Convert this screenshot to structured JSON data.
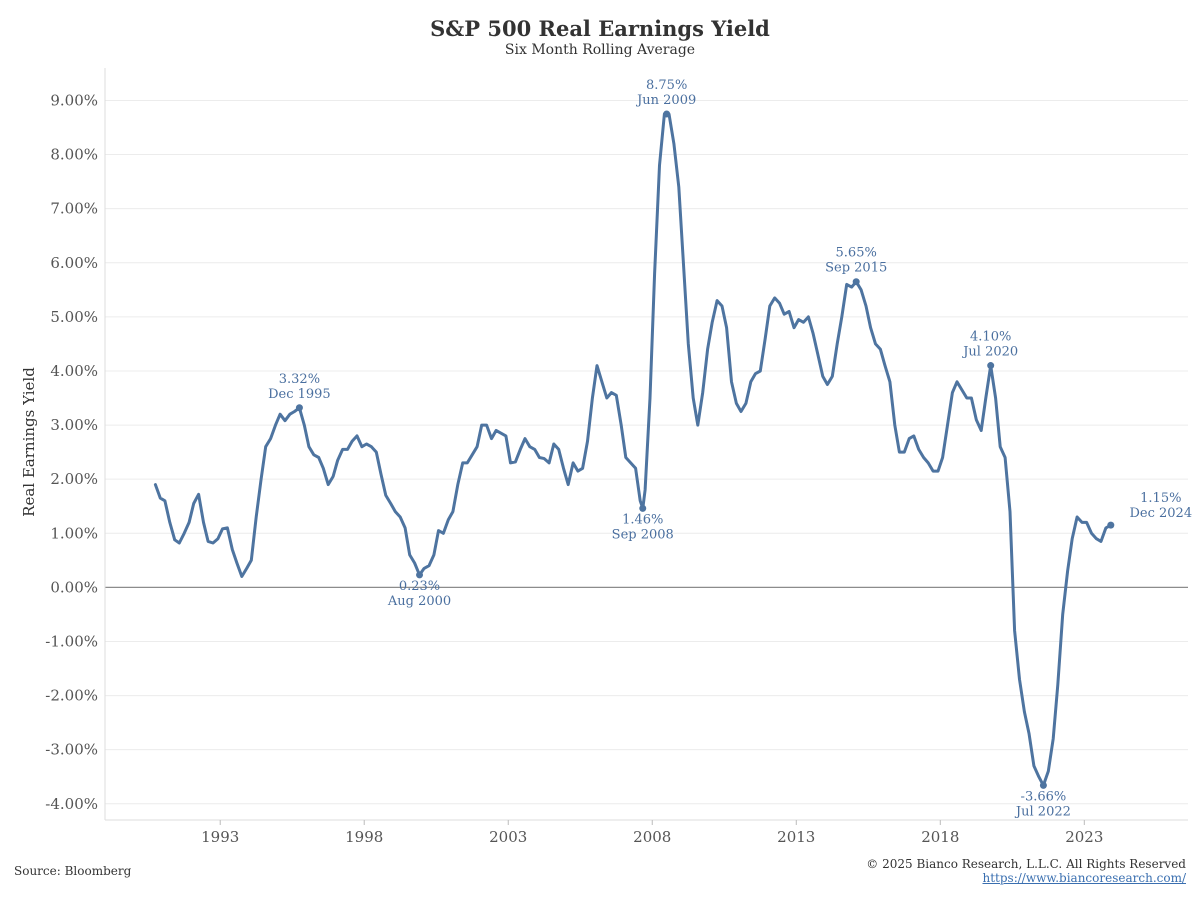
{
  "chart_data": {
    "type": "line",
    "title": "S&P 500 Real Earnings Yield",
    "subtitle": "Six Month Rolling Average",
    "ylabel": "Real Earnings Yield",
    "xlabel": "",
    "ylim": [
      -4.3,
      9.6
    ],
    "xlim": [
      1989.0,
      2026.6
    ],
    "y_ticks": [
      9,
      8,
      7,
      6,
      5,
      4,
      3,
      2,
      1,
      0,
      -1,
      -2,
      -3,
      -4
    ],
    "y_tick_labels": [
      "9.00%",
      "8.00%",
      "7.00%",
      "6.00%",
      "5.00%",
      "4.00%",
      "3.00%",
      "2.00%",
      "1.00%",
      "0.00%",
      "-1.00%",
      "-2.00%",
      "-3.00%",
      "-4.00%"
    ],
    "x_ticks": [
      1993,
      1998,
      2003,
      2008,
      2013,
      2018,
      2023
    ],
    "x_tick_labels": [
      "1993",
      "1998",
      "2003",
      "2008",
      "2013",
      "2018",
      "2023"
    ],
    "grid": "horizontal",
    "line_color": "#4e74a0",
    "zero_line_color": "#8c8c8c",
    "annotation_color": "#4a6f9f",
    "series": [
      {
        "points": [
          [
            1990.75,
            1.9
          ],
          [
            1990.92,
            1.65
          ],
          [
            1991.08,
            1.6
          ],
          [
            1991.25,
            1.2
          ],
          [
            1991.42,
            0.88
          ],
          [
            1991.58,
            0.82
          ],
          [
            1991.75,
            1.0
          ],
          [
            1991.92,
            1.2
          ],
          [
            1992.08,
            1.55
          ],
          [
            1992.25,
            1.72
          ],
          [
            1992.42,
            1.2
          ],
          [
            1992.58,
            0.85
          ],
          [
            1992.75,
            0.82
          ],
          [
            1992.92,
            0.9
          ],
          [
            1993.08,
            1.08
          ],
          [
            1993.25,
            1.1
          ],
          [
            1993.42,
            0.7
          ],
          [
            1993.58,
            0.45
          ],
          [
            1993.75,
            0.2
          ],
          [
            1993.92,
            0.35
          ],
          [
            1994.08,
            0.5
          ],
          [
            1994.25,
            1.3
          ],
          [
            1994.42,
            2.0
          ],
          [
            1994.58,
            2.6
          ],
          [
            1994.75,
            2.75
          ],
          [
            1994.92,
            3.0
          ],
          [
            1995.08,
            3.2
          ],
          [
            1995.25,
            3.08
          ],
          [
            1995.42,
            3.2
          ],
          [
            1995.58,
            3.25
          ],
          [
            1995.75,
            3.32
          ],
          [
            1995.92,
            3.0
          ],
          [
            1996.08,
            2.6
          ],
          [
            1996.25,
            2.45
          ],
          [
            1996.42,
            2.4
          ],
          [
            1996.58,
            2.2
          ],
          [
            1996.75,
            1.9
          ],
          [
            1996.92,
            2.05
          ],
          [
            1997.08,
            2.35
          ],
          [
            1997.25,
            2.55
          ],
          [
            1997.42,
            2.55
          ],
          [
            1997.58,
            2.7
          ],
          [
            1997.75,
            2.8
          ],
          [
            1997.92,
            2.6
          ],
          [
            1998.08,
            2.65
          ],
          [
            1998.25,
            2.6
          ],
          [
            1998.42,
            2.5
          ],
          [
            1998.58,
            2.1
          ],
          [
            1998.75,
            1.7
          ],
          [
            1998.92,
            1.55
          ],
          [
            1999.08,
            1.4
          ],
          [
            1999.25,
            1.3
          ],
          [
            1999.42,
            1.1
          ],
          [
            1999.58,
            0.6
          ],
          [
            1999.75,
            0.45
          ],
          [
            1999.92,
            0.23
          ],
          [
            2000.08,
            0.35
          ],
          [
            2000.25,
            0.4
          ],
          [
            2000.42,
            0.6
          ],
          [
            2000.58,
            1.05
          ],
          [
            2000.75,
            1.0
          ],
          [
            2000.92,
            1.25
          ],
          [
            2001.08,
            1.4
          ],
          [
            2001.25,
            1.9
          ],
          [
            2001.42,
            2.3
          ],
          [
            2001.58,
            2.3
          ],
          [
            2001.75,
            2.45
          ],
          [
            2001.92,
            2.6
          ],
          [
            2002.08,
            3.0
          ],
          [
            2002.25,
            3.0
          ],
          [
            2002.42,
            2.75
          ],
          [
            2002.58,
            2.9
          ],
          [
            2002.75,
            2.85
          ],
          [
            2002.92,
            2.8
          ],
          [
            2003.08,
            2.3
          ],
          [
            2003.25,
            2.32
          ],
          [
            2003.42,
            2.55
          ],
          [
            2003.58,
            2.75
          ],
          [
            2003.75,
            2.6
          ],
          [
            2003.92,
            2.55
          ],
          [
            2004.08,
            2.4
          ],
          [
            2004.25,
            2.38
          ],
          [
            2004.42,
            2.3
          ],
          [
            2004.58,
            2.65
          ],
          [
            2004.75,
            2.55
          ],
          [
            2004.92,
            2.2
          ],
          [
            2005.08,
            1.9
          ],
          [
            2005.25,
            2.3
          ],
          [
            2005.42,
            2.15
          ],
          [
            2005.58,
            2.2
          ],
          [
            2005.75,
            2.7
          ],
          [
            2005.92,
            3.5
          ],
          [
            2006.08,
            4.1
          ],
          [
            2006.25,
            3.8
          ],
          [
            2006.42,
            3.5
          ],
          [
            2006.58,
            3.6
          ],
          [
            2006.75,
            3.55
          ],
          [
            2006.92,
            3.0
          ],
          [
            2007.08,
            2.4
          ],
          [
            2007.25,
            2.3
          ],
          [
            2007.42,
            2.2
          ],
          [
            2007.58,
            1.6
          ],
          [
            2007.67,
            1.46
          ],
          [
            2007.75,
            1.8
          ],
          [
            2007.92,
            3.5
          ],
          [
            2008.08,
            5.8
          ],
          [
            2008.25,
            7.8
          ],
          [
            2008.42,
            8.75
          ],
          [
            2008.58,
            8.75
          ],
          [
            2008.75,
            8.2
          ],
          [
            2008.92,
            7.4
          ],
          [
            2009.08,
            6.0
          ],
          [
            2009.25,
            4.5
          ],
          [
            2009.42,
            3.5
          ],
          [
            2009.58,
            3.0
          ],
          [
            2009.75,
            3.6
          ],
          [
            2009.92,
            4.4
          ],
          [
            2010.08,
            4.9
          ],
          [
            2010.25,
            5.3
          ],
          [
            2010.42,
            5.2
          ],
          [
            2010.58,
            4.8
          ],
          [
            2010.75,
            3.8
          ],
          [
            2010.92,
            3.4
          ],
          [
            2011.08,
            3.25
          ],
          [
            2011.25,
            3.4
          ],
          [
            2011.42,
            3.8
          ],
          [
            2011.58,
            3.95
          ],
          [
            2011.75,
            4.0
          ],
          [
            2011.92,
            4.6
          ],
          [
            2012.08,
            5.2
          ],
          [
            2012.25,
            5.35
          ],
          [
            2012.42,
            5.25
          ],
          [
            2012.58,
            5.05
          ],
          [
            2012.75,
            5.1
          ],
          [
            2012.92,
            4.8
          ],
          [
            2013.08,
            4.95
          ],
          [
            2013.25,
            4.9
          ],
          [
            2013.42,
            5.0
          ],
          [
            2013.58,
            4.7
          ],
          [
            2013.75,
            4.3
          ],
          [
            2013.92,
            3.9
          ],
          [
            2014.08,
            3.75
          ],
          [
            2014.25,
            3.9
          ],
          [
            2014.42,
            4.5
          ],
          [
            2014.58,
            5.0
          ],
          [
            2014.75,
            5.6
          ],
          [
            2014.92,
            5.55
          ],
          [
            2015.08,
            5.65
          ],
          [
            2015.25,
            5.5
          ],
          [
            2015.42,
            5.2
          ],
          [
            2015.58,
            4.8
          ],
          [
            2015.75,
            4.5
          ],
          [
            2015.92,
            4.4
          ],
          [
            2016.08,
            4.1
          ],
          [
            2016.25,
            3.8
          ],
          [
            2016.42,
            3.0
          ],
          [
            2016.58,
            2.5
          ],
          [
            2016.75,
            2.5
          ],
          [
            2016.92,
            2.75
          ],
          [
            2017.08,
            2.8
          ],
          [
            2017.25,
            2.55
          ],
          [
            2017.42,
            2.4
          ],
          [
            2017.58,
            2.3
          ],
          [
            2017.75,
            2.15
          ],
          [
            2017.92,
            2.15
          ],
          [
            2018.08,
            2.4
          ],
          [
            2018.25,
            3.0
          ],
          [
            2018.42,
            3.6
          ],
          [
            2018.58,
            3.8
          ],
          [
            2018.75,
            3.65
          ],
          [
            2018.92,
            3.5
          ],
          [
            2019.08,
            3.5
          ],
          [
            2019.25,
            3.1
          ],
          [
            2019.42,
            2.9
          ],
          [
            2019.58,
            3.5
          ],
          [
            2019.75,
            4.1
          ],
          [
            2019.92,
            3.5
          ],
          [
            2020.08,
            2.6
          ],
          [
            2020.25,
            2.4
          ],
          [
            2020.42,
            1.4
          ],
          [
            2020.58,
            -0.8
          ],
          [
            2020.75,
            -1.7
          ],
          [
            2020.92,
            -2.3
          ],
          [
            2021.08,
            -2.7
          ],
          [
            2021.25,
            -3.3
          ],
          [
            2021.42,
            -3.5
          ],
          [
            2021.58,
            -3.66
          ],
          [
            2021.75,
            -3.4
          ],
          [
            2021.92,
            -2.8
          ],
          [
            2022.08,
            -1.8
          ],
          [
            2022.25,
            -0.5
          ],
          [
            2022.42,
            0.3
          ],
          [
            2022.58,
            0.9
          ],
          [
            2022.75,
            1.3
          ],
          [
            2022.92,
            1.2
          ],
          [
            2023.08,
            1.2
          ],
          [
            2023.25,
            1.0
          ],
          [
            2023.42,
            0.9
          ],
          [
            2023.58,
            0.85
          ],
          [
            2023.75,
            1.1
          ],
          [
            2023.92,
            1.15
          ]
        ]
      }
    ],
    "annotations": [
      {
        "x": 1995.75,
        "y": 3.32,
        "label": "3.32%",
        "date": "Dec 1995",
        "position": "above"
      },
      {
        "x": 1999.92,
        "y": 0.23,
        "label": "0.23%",
        "date": "Aug 2000",
        "position": "below"
      },
      {
        "x": 2007.67,
        "y": 1.46,
        "label": "1.46%",
        "date": "Sep 2008",
        "position": "below"
      },
      {
        "x": 2008.5,
        "y": 8.75,
        "label": "8.75%",
        "date": "Jun 2009",
        "position": "above"
      },
      {
        "x": 2015.08,
        "y": 5.65,
        "label": "5.65%",
        "date": "Sep 2015",
        "position": "above"
      },
      {
        "x": 2019.75,
        "y": 4.1,
        "label": "4.10%",
        "date": "Jul 2020",
        "position": "above"
      },
      {
        "x": 2021.58,
        "y": -3.66,
        "label": "-3.66%",
        "date": "Jul 2022",
        "position": "below"
      },
      {
        "x": 2023.92,
        "y": 1.15,
        "label": "1.15%",
        "date": "Dec 2024",
        "position": "right-above"
      }
    ]
  },
  "footer": {
    "source": "Source: Bloomberg",
    "copyright": "© 2025 Bianco Research, L.L.C. All Rights Reserved",
    "website": "https://www.biancoresearch.com/"
  }
}
